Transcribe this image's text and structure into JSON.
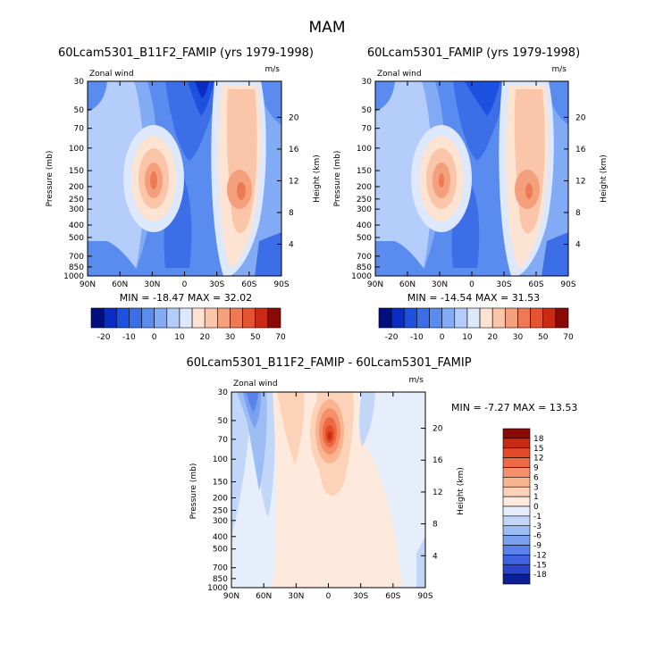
{
  "figure": {
    "title": "MAM"
  },
  "chart_data": [
    {
      "type": "heatmap",
      "title": "60Lcam5301_B11F2_FAMIP (yrs 1979-1998)",
      "subtitle_left": "Zonal wind",
      "subtitle_right": "m/s",
      "xlabel": "",
      "ylabel": "Pressure (mb)",
      "ylabel_right": "Height (km)",
      "x_ticks": [
        "90N",
        "60N",
        "30N",
        "0",
        "30S",
        "60S",
        "90S"
      ],
      "y_ticks": [
        "30",
        "50",
        "70",
        "100",
        "150",
        "200",
        "250",
        "300",
        "400",
        "500",
        "700",
        "850",
        "1000"
      ],
      "y_ticks_right": [
        "20",
        "16",
        "12",
        "8",
        "4"
      ],
      "y_scale": "log",
      "y_range": [
        1000,
        30
      ],
      "min_max_text": "MIN = -18.47   MAX =  32.02",
      "colorbar_labels": [
        "-20",
        "-10",
        "0",
        "10",
        "20",
        "30",
        "50",
        "70"
      ],
      "colorbar_colors": [
        "#000f7d",
        "#0a2cc4",
        "#1e50e0",
        "#3c6ee8",
        "#5a8cf0",
        "#82aaf5",
        "#b4cdfa",
        "#dde8fc",
        "#fde3d2",
        "#fac5a8",
        "#f5a07d",
        "#ee7a55",
        "#e45432",
        "#c92a14",
        "#8a0a08"
      ]
    },
    {
      "type": "heatmap",
      "title": "60Lcam5301_FAMIP (yrs 1979-1998)",
      "subtitle_left": "Zonal wind",
      "subtitle_right": "m/s",
      "xlabel": "",
      "ylabel": "Pressure (mb)",
      "ylabel_right": "Height (km)",
      "x_ticks": [
        "90N",
        "60N",
        "30N",
        "0",
        "30S",
        "60S",
        "90S"
      ],
      "y_ticks": [
        "30",
        "50",
        "70",
        "100",
        "150",
        "200",
        "250",
        "300",
        "400",
        "500",
        "700",
        "850",
        "1000"
      ],
      "y_ticks_right": [
        "20",
        "16",
        "12",
        "8",
        "4"
      ],
      "y_scale": "log",
      "y_range": [
        1000,
        30
      ],
      "min_max_text": "MIN = -14.54   MAX =  31.53",
      "colorbar_labels": [
        "-20",
        "-10",
        "0",
        "10",
        "20",
        "30",
        "50",
        "70"
      ],
      "colorbar_colors": [
        "#000f7d",
        "#0a2cc4",
        "#1e50e0",
        "#3c6ee8",
        "#5a8cf0",
        "#82aaf5",
        "#b4cdfa",
        "#dde8fc",
        "#fde3d2",
        "#fac5a8",
        "#f5a07d",
        "#ee7a55",
        "#e45432",
        "#c92a14",
        "#8a0a08"
      ]
    },
    {
      "type": "heatmap",
      "title": "60Lcam5301_B11F2_FAMIP - 60Lcam5301_FAMIP",
      "subtitle_left": "Zonal wind",
      "subtitle_right": "m/s",
      "xlabel": "",
      "ylabel": "Pressure (mb)",
      "ylabel_right": "Height (km)",
      "x_ticks": [
        "90N",
        "60N",
        "30N",
        "0",
        "30S",
        "60S",
        "90S"
      ],
      "y_ticks": [
        "30",
        "50",
        "70",
        "100",
        "150",
        "200",
        "250",
        "300",
        "400",
        "500",
        "700",
        "850",
        "1000"
      ],
      "y_ticks_right": [
        "20",
        "16",
        "12",
        "8",
        "4"
      ],
      "y_scale": "log",
      "y_range": [
        1000,
        30
      ],
      "min_max_text": "MIN =  -7.27   MAX =  13.53",
      "colorbar_labels": [
        "18",
        "15",
        "12",
        "9",
        "6",
        "3",
        "1",
        "0",
        "-1",
        "-3",
        "-6",
        "-9",
        "-12",
        "-15",
        "-18"
      ],
      "colorbar_colors": [
        "#8a0a08",
        "#c92a14",
        "#e44a28",
        "#ee6a45",
        "#f5906a",
        "#f9b490",
        "#fcd3b8",
        "#feeadc",
        "#e6eefc",
        "#c2d6f8",
        "#9cbcf4",
        "#7aa0f0",
        "#5a82ea",
        "#3e62e0",
        "#2a45cc",
        "#0a1e96"
      ]
    }
  ]
}
